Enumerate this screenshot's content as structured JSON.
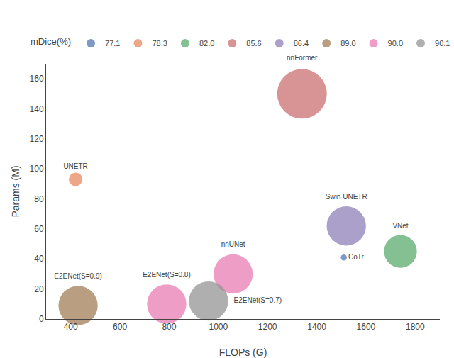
{
  "chart_data": {
    "type": "bubble",
    "x_label": "FLOPs (G)",
    "y_label": "Params (M)",
    "xlim": [
      300,
      1900
    ],
    "ylim": [
      0,
      170
    ],
    "xticks": [
      400,
      600,
      800,
      1000,
      1200,
      1400,
      1600,
      1800
    ],
    "yticks": [
      0,
      20,
      40,
      60,
      80,
      100,
      120,
      140,
      160
    ],
    "grid": false,
    "legend": "top",
    "legend_title": "mDice(%)",
    "series": [
      {
        "name": "77.1",
        "color": "#4C72B0",
        "labels": [
          "CoTr"
        ],
        "x": [
          1510
        ],
        "values": [
          41
        ],
        "sizes": [
          120
        ]
      },
      {
        "name": "78.3",
        "color": "#E8845A",
        "labels": [
          "UNETR"
        ],
        "x": [
          420
        ],
        "values": [
          93
        ],
        "sizes": [
          600
        ]
      },
      {
        "name": "82.0",
        "color": "#55A868",
        "labels": [
          "VNet"
        ],
        "x": [
          1740
        ],
        "values": [
          45
        ],
        "sizes": [
          3500
        ]
      },
      {
        "name": "85.6",
        "color": "#C96B6B",
        "labels": [
          "nnFormer"
        ],
        "x": [
          1340
        ],
        "values": [
          150
        ],
        "sizes": [
          8000
        ]
      },
      {
        "name": "86.4",
        "color": "#8B7BB5",
        "labels": [
          "Swin UNETR"
        ],
        "x": [
          1520
        ],
        "values": [
          62
        ],
        "sizes": [
          5000
        ]
      },
      {
        "name": "89.0",
        "color": "#A07850",
        "labels": [
          "E2ENet(S=0.9)"
        ],
        "x": [
          430
        ],
        "values": [
          9
        ],
        "sizes": [
          5000
        ]
      },
      {
        "name": "90.0",
        "color": "#E878B0",
        "labels": [
          "nnUNet",
          "E2ENet(S=0.8)"
        ],
        "x": [
          1060,
          790
        ],
        "values": [
          30,
          10
        ],
        "sizes": [
          5000,
          5000
        ]
      },
      {
        "name": "90.1",
        "color": "#909090",
        "labels": [
          "E2ENet(S=0.7)"
        ],
        "x": [
          960
        ],
        "values": [
          12
        ],
        "sizes": [
          5000
        ]
      }
    ]
  }
}
